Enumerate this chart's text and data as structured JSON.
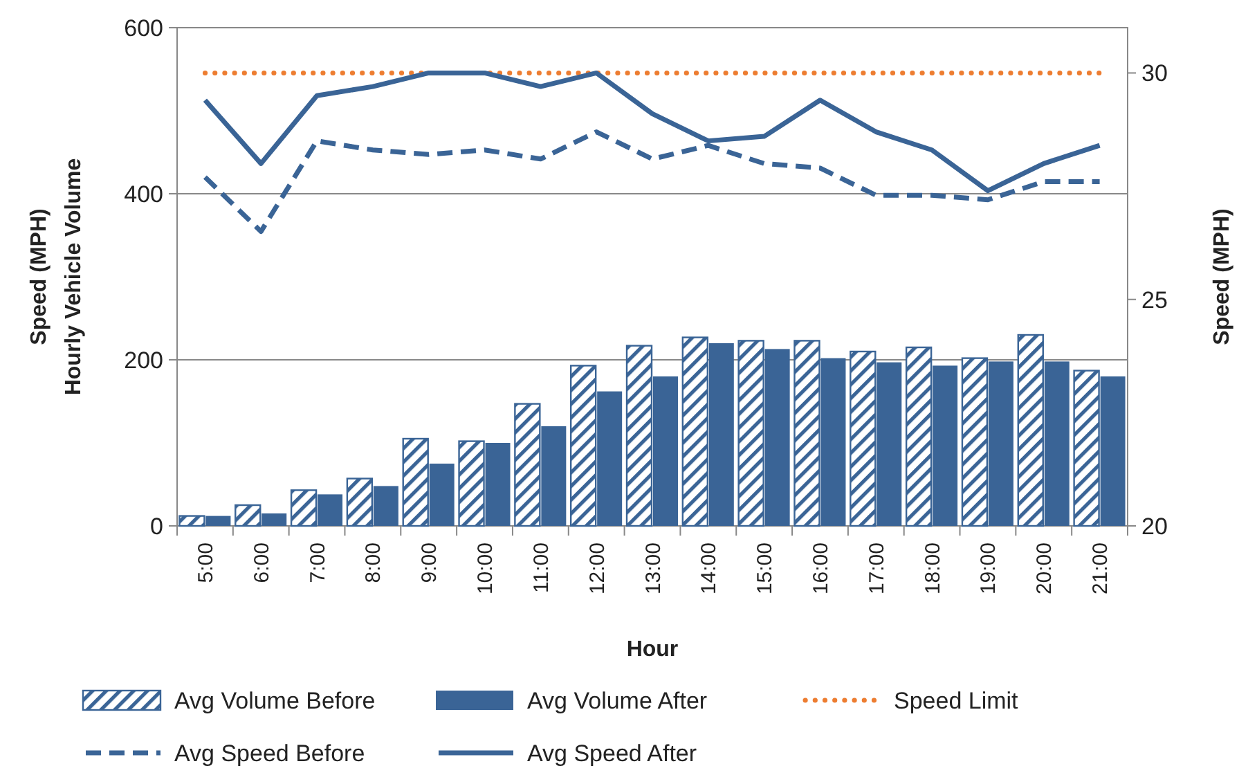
{
  "chart_data": {
    "type": "bar",
    "xlabel": "Hour",
    "ylabel": "Speed (MPH)\nHourly Vehicle Volume",
    "y2label": "Speed (MPH)",
    "categories": [
      "5:00",
      "6:00",
      "7:00",
      "8:00",
      "9:00",
      "10:00",
      "11:00",
      "12:00",
      "13:00",
      "14:00",
      "15:00",
      "16:00",
      "17:00",
      "18:00",
      "19:00",
      "20:00",
      "21:00"
    ],
    "series": [
      {
        "name": "Avg Volume Before",
        "color": "#3a6496",
        "values": [
          12,
          25,
          43,
          57,
          105,
          102,
          147,
          193,
          217,
          227,
          223,
          223,
          210,
          215,
          202,
          230,
          187
        ]
      },
      {
        "name": "Avg Volume After",
        "color": "#3a6496",
        "values": [
          12,
          15,
          38,
          48,
          75,
          100,
          120,
          162,
          180,
          220,
          213,
          202,
          197,
          193,
          198,
          198,
          180
        ]
      },
      {
        "name": "Speed Limit",
        "type": "line",
        "axis": "y2",
        "color": "#ed7d31",
        "line_style": "dotted",
        "values": [
          30,
          30,
          30,
          30,
          30,
          30,
          30,
          30,
          30,
          30,
          30,
          30,
          30,
          30,
          30,
          30,
          30
        ]
      },
      {
        "name": "Avg Speed Before",
        "type": "line",
        "axis": "y2",
        "color": "#3a6496",
        "line_style": "dashed",
        "values": [
          27.7,
          26.5,
          28.5,
          28.3,
          28.2,
          28.3,
          28.1,
          28.7,
          28.1,
          28.4,
          28.0,
          27.9,
          27.3,
          27.3,
          27.2,
          27.6,
          27.6
        ]
      },
      {
        "name": "Avg Speed After",
        "type": "line",
        "axis": "y2",
        "color": "#3a6496",
        "line_style": "solid",
        "values": [
          29.4,
          28.0,
          29.5,
          29.7,
          30.0,
          30.0,
          29.7,
          30.0,
          29.1,
          28.5,
          28.6,
          29.4,
          28.7,
          28.3,
          27.4,
          28.0,
          28.4
        ]
      }
    ],
    "ylim": [
      0,
      600
    ],
    "yticks": [
      0,
      200,
      400,
      600
    ],
    "y2lim": [
      20,
      31
    ],
    "y2ticks": [
      20,
      25,
      30
    ],
    "grid": "y",
    "legend": "bottom",
    "marker": "none"
  }
}
